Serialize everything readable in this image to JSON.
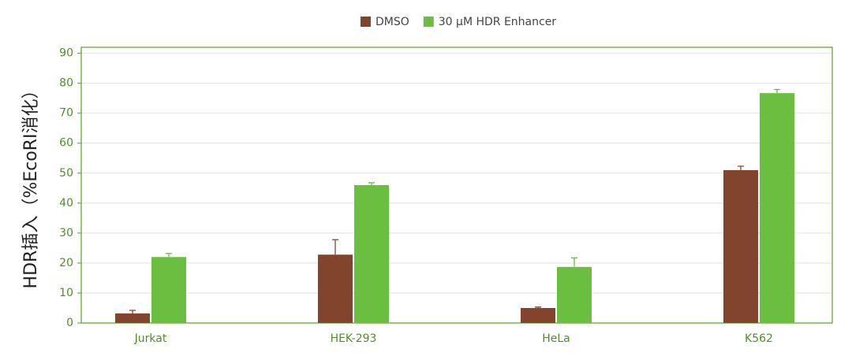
{
  "chart_data": {
    "type": "bar",
    "ylabel": "HDR插入（%EcoRI消化）",
    "categories": [
      "Jurkat",
      "HEK-293",
      "HeLa",
      "K562"
    ],
    "series": [
      {
        "name": "DMSO",
        "color": "#83442e",
        "values": [
          3.2,
          22.8,
          5,
          51
        ],
        "errors": [
          1,
          5,
          0.3,
          1.3
        ]
      },
      {
        "name": "30 µM HDR Enhancer",
        "color": "#6abf40",
        "values": [
          22,
          46,
          18.7,
          76.7
        ],
        "errors": [
          1.2,
          0.8,
          3,
          1.2
        ]
      }
    ],
    "ylim": [
      0,
      92
    ],
    "yticks": [
      0,
      10,
      20,
      30,
      40,
      50,
      60,
      70,
      80,
      90
    ],
    "grid": true
  }
}
